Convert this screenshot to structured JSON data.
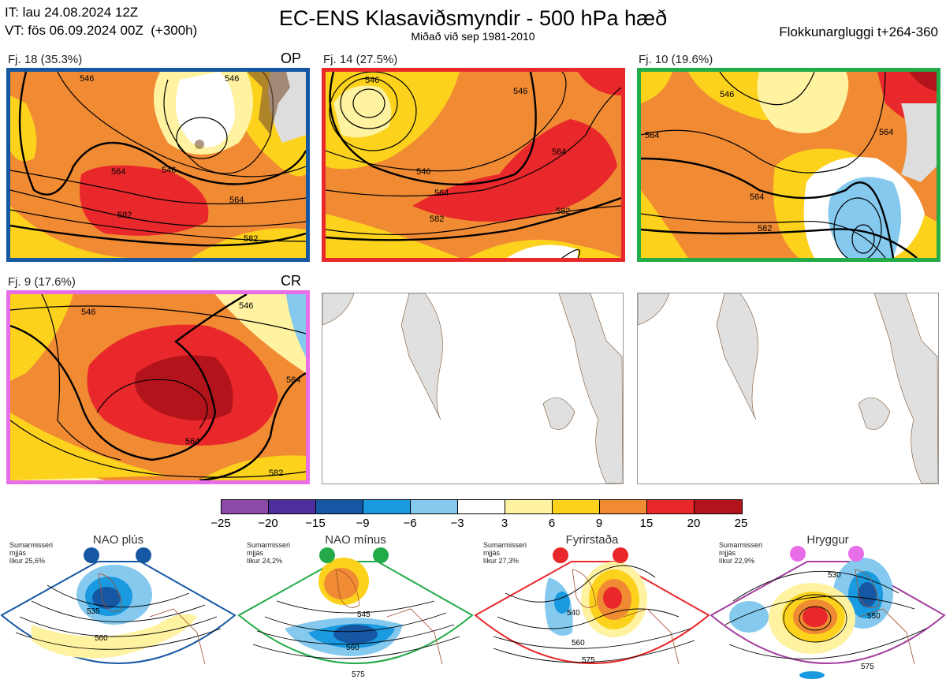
{
  "header": {
    "it": "IT: lau 24.08.2024 12Z",
    "vt": "VT: fös 06.09.2024 00Z  (+300h)",
    "title": "EC-ENS Klasaviðsmyndir - 500 hPa hæð",
    "subtitle": "Miðað við sep 1981-2010",
    "window": "Flokkunargluggi t+264-360"
  },
  "panels": [
    {
      "label": "Fj. 18 (35.3%)",
      "tag": "OP",
      "frame_color": "#1557a3",
      "contours": [
        "546",
        "546",
        "546",
        "564",
        "564",
        "582",
        "582"
      ]
    },
    {
      "label": "Fj. 14 (27.5%)",
      "tag": "",
      "frame_color": "#e8282a",
      "contours": [
        "546",
        "546",
        "564",
        "564",
        "582",
        "582"
      ]
    },
    {
      "label": "Fj. 10 (19.6%)",
      "tag": "",
      "frame_color": "#22ab48",
      "contours": [
        "546",
        "564",
        "564",
        "582"
      ]
    },
    {
      "label": "Fj. 9 (17.6%)",
      "tag": "CR",
      "frame_color": "#e86ee8",
      "contours": [
        "546",
        "564",
        "564",
        "582"
      ]
    }
  ],
  "colorbar": {
    "ticks": [
      "−25",
      "−20",
      "−15",
      "−9",
      "−6",
      "−3",
      "3",
      "6",
      "9",
      "15",
      "20",
      "25"
    ],
    "colors": [
      "#8c4aa8",
      "#4d2e9c",
      "#1557a3",
      "#1a9ae0",
      "#85c9ef",
      "#ffffff",
      "#fff2a0",
      "#fcd21d",
      "#f08a33",
      "#e8282a",
      "#b3141c"
    ]
  },
  "regimes": [
    {
      "name": "NAO plús",
      "info": "Sumarmisseri\nmjjás\nlíkur 25,6%",
      "color": "#1557a3",
      "contours": [
        "535",
        "560"
      ]
    },
    {
      "name": "NAO mínus",
      "info": "Sumarmisseri\nmjjás\nlíkur 24,2%",
      "color": "#22ab48",
      "contours": [
        "545",
        "560",
        "575"
      ]
    },
    {
      "name": "Fyrirstaða",
      "info": "Sumarmisseri\nmjjás\nlíkur 27,3%",
      "color": "#e8282a",
      "contours": [
        "540",
        "560",
        "575"
      ]
    },
    {
      "name": "Hryggur",
      "info": "Sumarmisseri\nmjjás\nlíkur 22,9%",
      "color": "#a23c9e",
      "dot_color": "#e86ee8",
      "contours": [
        "530",
        "550",
        "575"
      ]
    }
  ]
}
